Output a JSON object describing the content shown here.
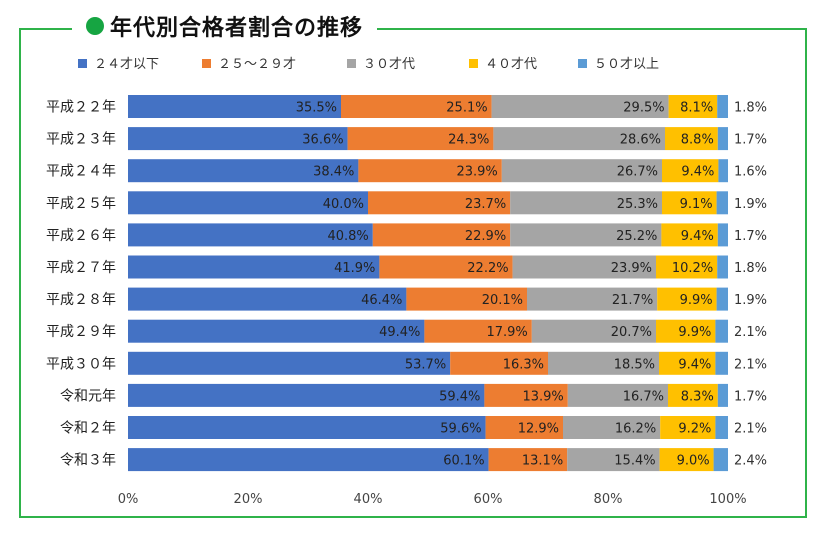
{
  "chart_data": {
    "type": "bar",
    "orientation": "horizontal",
    "stacked": "percent",
    "title": "年代別合格者割合の推移",
    "categories": [
      "平成２２年",
      "平成２３年",
      "平成２４年",
      "平成２５年",
      "平成２６年",
      "平成２７年",
      "平成２８年",
      "平成２９年",
      "平成３０年",
      "令和元年",
      "令和２年",
      "令和３年"
    ],
    "series": [
      {
        "name": "２４才以下",
        "color": "#4472c4",
        "values": [
          35.5,
          36.6,
          38.4,
          40.0,
          40.8,
          41.9,
          46.4,
          49.4,
          53.7,
          59.4,
          59.6,
          60.1
        ]
      },
      {
        "name": "２５～２９才",
        "color": "#ed7d31",
        "values": [
          25.1,
          24.3,
          23.9,
          23.7,
          22.9,
          22.2,
          20.1,
          17.9,
          16.3,
          13.9,
          12.9,
          13.1
        ]
      },
      {
        "name": "３０才代",
        "color": "#a5a5a5",
        "values": [
          29.5,
          28.6,
          26.7,
          25.3,
          25.2,
          23.9,
          21.7,
          20.7,
          18.5,
          16.7,
          16.2,
          15.4
        ]
      },
      {
        "name": "４０才代",
        "color": "#ffc000",
        "values": [
          8.1,
          8.8,
          9.4,
          9.1,
          9.4,
          10.2,
          9.9,
          9.9,
          9.4,
          8.3,
          9.2,
          9.0
        ]
      },
      {
        "name": "５０才以上",
        "color": "#5b9bd5",
        "values": [
          1.8,
          1.7,
          1.6,
          1.9,
          1.7,
          1.8,
          1.9,
          2.1,
          2.1,
          1.7,
          2.1,
          2.4
        ]
      }
    ],
    "xlim": [
      0,
      100
    ],
    "xticks": [
      "0%",
      "20%",
      "40%",
      "60%",
      "80%",
      "100%"
    ],
    "legend_position": "top",
    "grid": false
  }
}
